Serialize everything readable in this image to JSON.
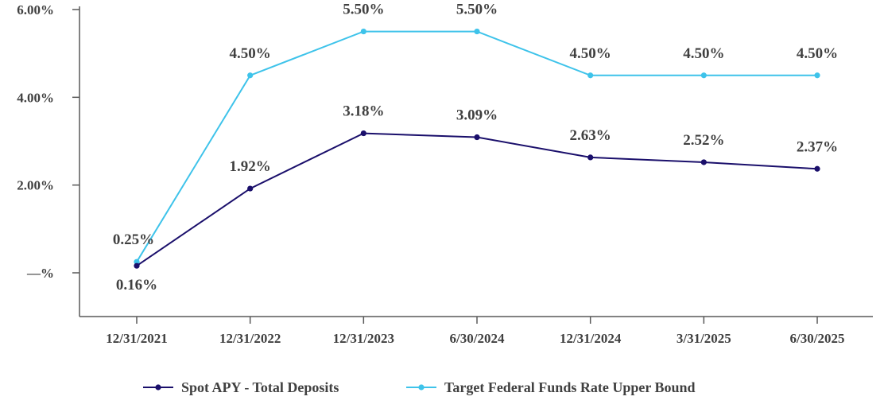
{
  "chart_data": {
    "type": "line",
    "categories": [
      "12/31/2021",
      "12/31/2022",
      "12/31/2023",
      "6/30/2024",
      "12/31/2024",
      "3/31/2025",
      "6/30/2025"
    ],
    "ylim": [
      -1,
      6
    ],
    "y_ticks": [
      0,
      2,
      4,
      6
    ],
    "y_tick_labels": [
      "—%",
      "2.00%",
      "4.00%",
      "6.00%"
    ],
    "grid": false,
    "legend_position": "bottom",
    "series": [
      {
        "name": "Spot APY - Total Deposits",
        "values": [
          0.16,
          1.92,
          3.18,
          3.09,
          2.63,
          2.52,
          2.37
        ],
        "labels": [
          "0.16%",
          "1.92%",
          "3.18%",
          "3.09%",
          "2.63%",
          "2.52%",
          "2.37%"
        ],
        "color": "#1a0f6b"
      },
      {
        "name": "Target Federal Funds Rate Upper Bound",
        "values": [
          0.25,
          4.5,
          5.5,
          5.5,
          4.5,
          4.5,
          4.5
        ],
        "labels": [
          "0.25%",
          "4.50%",
          "5.50%",
          "5.50%",
          "4.50%",
          "4.50%",
          "4.50%"
        ],
        "color": "#3ec3ea"
      }
    ]
  }
}
